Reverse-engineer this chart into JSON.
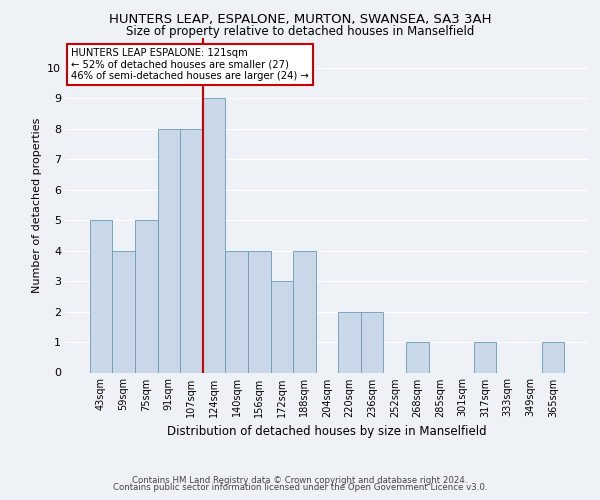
{
  "title": "HUNTERS LEAP, ESPALONE, MURTON, SWANSEA, SA3 3AH",
  "subtitle": "Size of property relative to detached houses in Manselfield",
  "xlabel": "Distribution of detached houses by size in Manselfield",
  "ylabel": "Number of detached properties",
  "categories": [
    "43sqm",
    "59sqm",
    "75sqm",
    "91sqm",
    "107sqm",
    "124sqm",
    "140sqm",
    "156sqm",
    "172sqm",
    "188sqm",
    "204sqm",
    "220sqm",
    "236sqm",
    "252sqm",
    "268sqm",
    "285sqm",
    "301sqm",
    "317sqm",
    "333sqm",
    "349sqm",
    "365sqm"
  ],
  "values": [
    5,
    4,
    5,
    8,
    8,
    9,
    4,
    4,
    3,
    4,
    0,
    2,
    2,
    0,
    1,
    0,
    0,
    1,
    0,
    0,
    1
  ],
  "bar_color": "#c8d8e8",
  "bar_edge_color": "#6a9ab8",
  "vline_x_index": 5,
  "vline_color": "#cc0000",
  "annotation_text": "HUNTERS LEAP ESPALONE: 121sqm\n← 52% of detached houses are smaller (27)\n46% of semi-detached houses are larger (24) →",
  "annotation_box_color": "#ffffff",
  "annotation_box_edge_color": "#cc0000",
  "ylim": [
    0,
    11
  ],
  "yticks": [
    0,
    1,
    2,
    3,
    4,
    5,
    6,
    7,
    8,
    9,
    10
  ],
  "footer_line1": "Contains HM Land Registry data © Crown copyright and database right 2024.",
  "footer_line2": "Contains public sector information licensed under the Open Government Licence v3.0.",
  "background_color": "#eef2f7",
  "grid_color": "#ffffff",
  "title_fontsize": 9.5,
  "subtitle_fontsize": 8.5,
  "tick_fontsize": 7,
  "ylabel_fontsize": 8,
  "xlabel_fontsize": 8.5,
  "footer_fontsize": 6.2
}
